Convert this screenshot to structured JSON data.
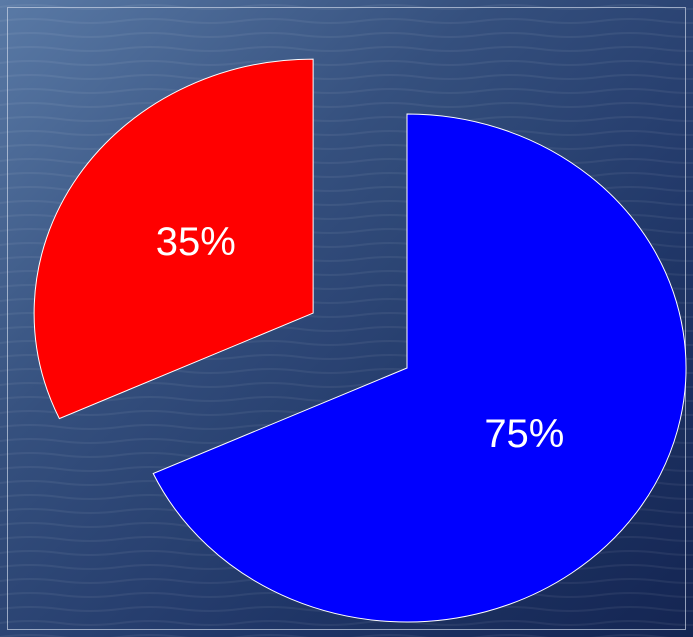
{
  "chart_data": {
    "type": "pie",
    "values": [
      35,
      75
    ],
    "value_labels": [
      "35%",
      "75%"
    ],
    "colors": [
      "#ff0000",
      "#0000ff"
    ],
    "exploded": [
      true,
      false
    ]
  }
}
